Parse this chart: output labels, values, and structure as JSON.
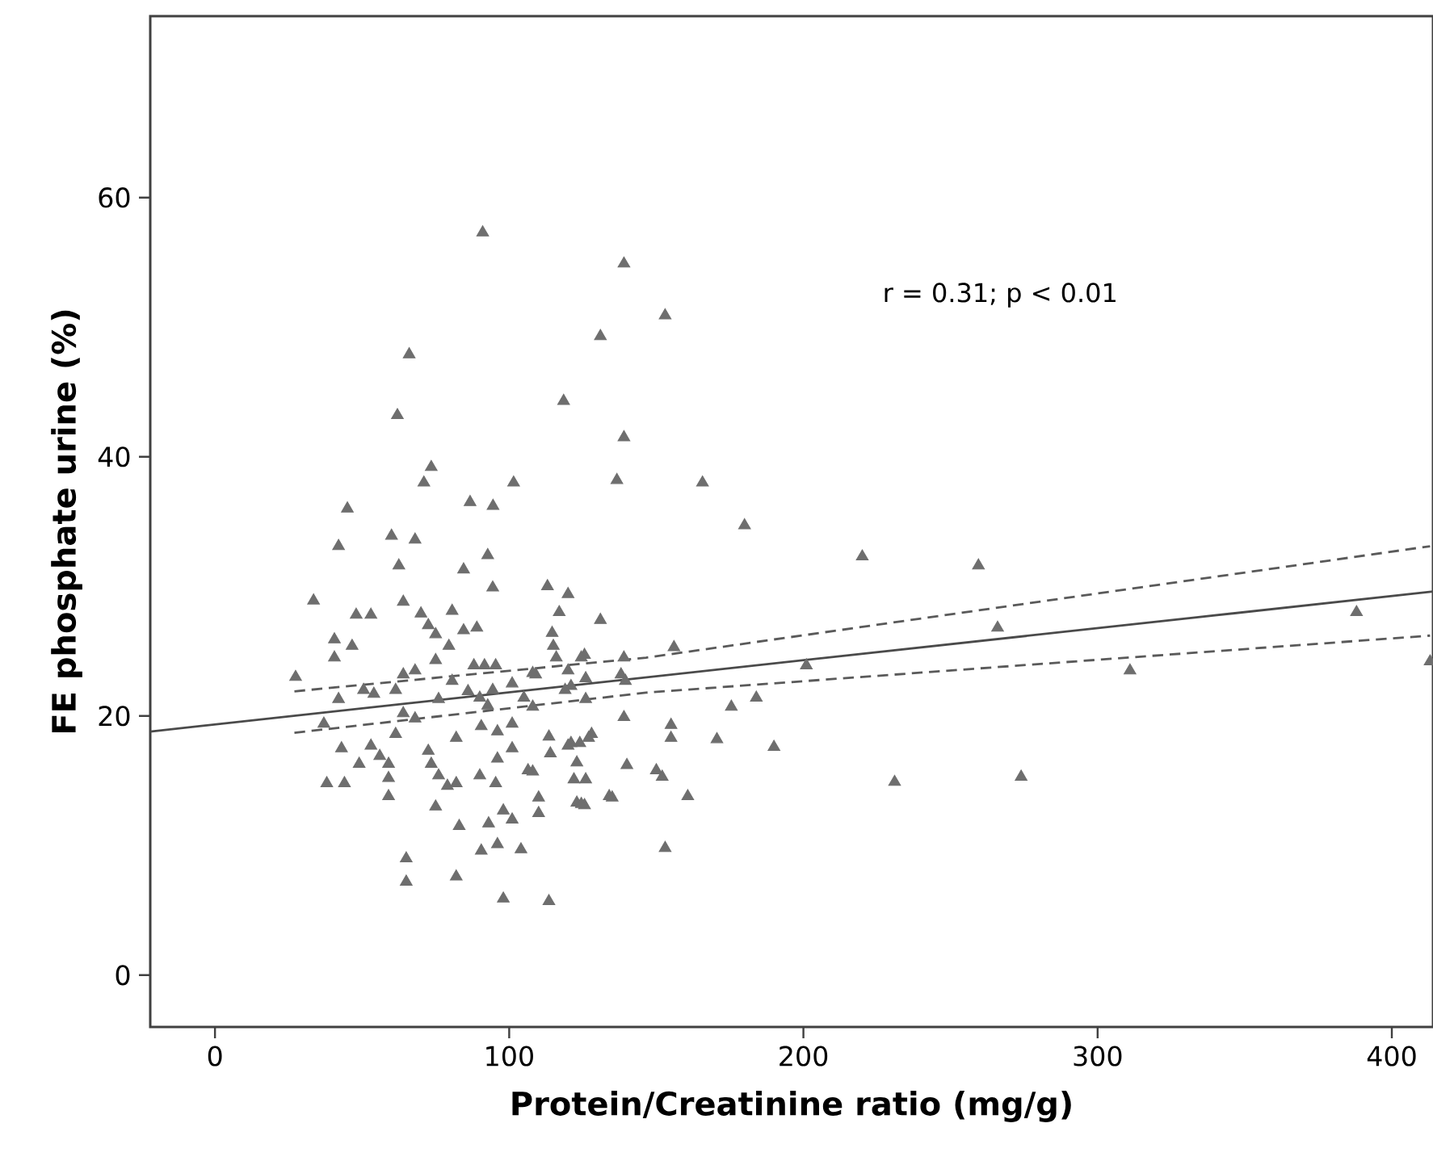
{
  "chart_data": {
    "type": "scatter",
    "xlabel": "Protein/Creatinine ratio (mg/g)",
    "ylabel": "FE phosphate urine (%)",
    "xlim": [
      -22,
      414
    ],
    "ylim": [
      -4,
      74
    ],
    "xticks": [
      0,
      100,
      200,
      300,
      400
    ],
    "yticks": [
      0,
      20,
      40,
      60
    ],
    "grid": false,
    "annotations": [
      "r = 0.31; p < 0.01"
    ],
    "series": [
      {
        "marker": "triangle",
        "color": "#6e6e6e",
        "x": [
          91,
          139,
          131,
          66,
          118.5,
          62,
          139,
          73.5,
          71,
          101.5,
          136.6,
          45,
          86.7,
          94.5,
          60,
          68,
          42,
          92.7,
          153,
          165.7,
          180,
          220,
          259.5,
          266,
          311,
          388,
          274,
          413,
          113,
          120,
          117,
          131,
          114.6,
          115,
          116,
          125.6,
          139,
          156,
          109,
          120,
          126,
          138,
          201,
          121,
          126,
          139.5,
          108,
          184,
          175.5,
          139,
          155,
          155,
          170.6,
          190,
          113.5,
          128,
          121,
          124,
          114,
          108,
          123,
          122,
          126,
          140,
          150,
          152,
          110,
          123,
          125.6,
          135,
          160.7,
          110,
          153,
          231,
          113.5,
          62.5,
          84.5,
          94.4,
          33.5,
          48,
          53,
          64,
          70,
          72.5,
          75,
          80.6,
          84.5,
          89,
          79.5,
          75,
          68,
          64,
          40.6,
          46.6,
          40.6,
          27.4,
          50.5,
          54,
          61.4,
          42,
          80.6,
          88,
          91.6,
          95.4,
          86,
          90,
          94.4,
          101,
          105,
          108,
          76,
          64,
          68,
          92.7,
          37,
          61.4,
          82,
          90.5,
          96,
          101,
          43,
          53,
          49,
          56,
          59,
          59,
          38,
          44,
          59,
          72.5,
          73.5,
          76,
          79,
          75,
          82,
          90,
          95.4,
          96,
          101,
          106.4,
          83,
          93,
          98,
          101,
          90.5,
          96,
          104,
          65,
          65,
          82,
          98,
          124.5,
          119,
          120,
          127,
          124.5,
          134
        ],
        "values": [
          57.3,
          54.9,
          49.3,
          47.9,
          44.3,
          43.2,
          41.5,
          39.2,
          38.0,
          38.0,
          38.2,
          36.0,
          36.5,
          36.2,
          33.9,
          33.6,
          33.1,
          32.4,
          50.9,
          38.0,
          34.7,
          32.3,
          31.6,
          26.8,
          23.5,
          28.0,
          15.3,
          24.2,
          30.0,
          29.4,
          28.0,
          27.4,
          26.4,
          25.4,
          24.5,
          24.7,
          24.5,
          25.3,
          23.2,
          23.5,
          22.9,
          23.2,
          23.9,
          22.3,
          21.3,
          22.7,
          20.7,
          21.4,
          20.7,
          19.9,
          19.3,
          18.3,
          18.2,
          17.6,
          18.4,
          18.6,
          17.9,
          17.9,
          17.1,
          15.7,
          16.4,
          15.1,
          15.1,
          16.2,
          15.8,
          15.3,
          13.7,
          13.3,
          13.1,
          13.7,
          13.8,
          12.5,
          9.8,
          14.9,
          5.7,
          31.6,
          31.3,
          29.9,
          28.9,
          27.8,
          27.8,
          28.8,
          27.9,
          27.0,
          26.3,
          28.1,
          26.6,
          26.8,
          25.4,
          24.3,
          23.5,
          23.2,
          25.9,
          25.4,
          24.5,
          23.0,
          22.0,
          21.7,
          22.0,
          21.3,
          22.7,
          23.9,
          23.9,
          23.9,
          21.9,
          21.4,
          22.0,
          22.5,
          21.4,
          23.3,
          21.3,
          20.2,
          19.8,
          20.8,
          19.4,
          18.6,
          18.3,
          19.2,
          18.8,
          19.4,
          17.5,
          17.7,
          16.3,
          16.9,
          16.3,
          15.2,
          14.8,
          14.8,
          13.8,
          17.3,
          16.3,
          15.4,
          14.6,
          13.0,
          14.8,
          15.4,
          14.8,
          16.7,
          17.5,
          15.8,
          11.5,
          11.7,
          12.7,
          12.0,
          9.6,
          10.1,
          9.7,
          9.0,
          7.2,
          7.6,
          5.9,
          24.5,
          22.0,
          17.7,
          18.3,
          13.2,
          13.8
        ]
      },
      {
        "type": "line",
        "color": "#4a4a4a",
        "line_style": "solid",
        "marker": "none",
        "x": [
          -22,
          414
        ],
        "values": [
          18.8,
          29.6
        ]
      },
      {
        "type": "line",
        "color": "#5a5a5a",
        "line_style": "dashed",
        "marker": "none",
        "x": [
          27,
          146.5,
          413
        ],
        "values": [
          21.9,
          24.5,
          33.1
        ]
      },
      {
        "type": "line",
        "color": "#5a5a5a",
        "line_style": "dashed",
        "marker": "none",
        "x": [
          27,
          146.5,
          413
        ],
        "values": [
          18.7,
          21.8,
          26.2
        ]
      }
    ]
  }
}
